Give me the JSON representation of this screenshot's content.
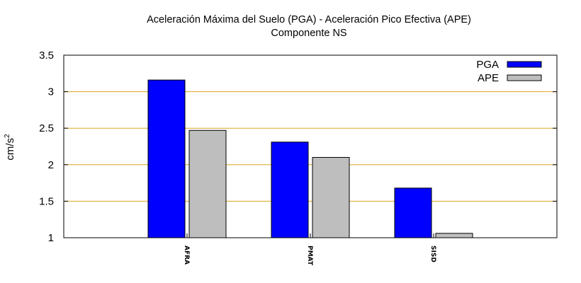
{
  "chart_data": {
    "type": "bar",
    "title": "Aceleración Máxima del Suelo (PGA) -  Aceleración Pico Efectiva (APE)",
    "subtitle": "Componente NS",
    "ylabel": "cm/s",
    "ylabel_superscript": "2",
    "xlabel": "",
    "categories": [
      "AFRA",
      "PMAT",
      "SISD"
    ],
    "series": [
      {
        "name": "PGA",
        "values": [
          3.16,
          2.31,
          1.68
        ],
        "color": "#0000ff"
      },
      {
        "name": "APE",
        "values": [
          2.47,
          2.1,
          1.06
        ],
        "color": "#bebebe"
      }
    ],
    "ylim": [
      1,
      3.5
    ],
    "yticks": [
      1,
      1.5,
      2,
      2.5,
      3,
      3.5
    ],
    "ytick_labels": [
      "1",
      "1.5",
      "2",
      "2.5",
      "3",
      "3.5"
    ],
    "gridlines": [
      1.5,
      2,
      2.5,
      3
    ],
    "grid_color": "#daa520",
    "legend_position": "top-right"
  }
}
